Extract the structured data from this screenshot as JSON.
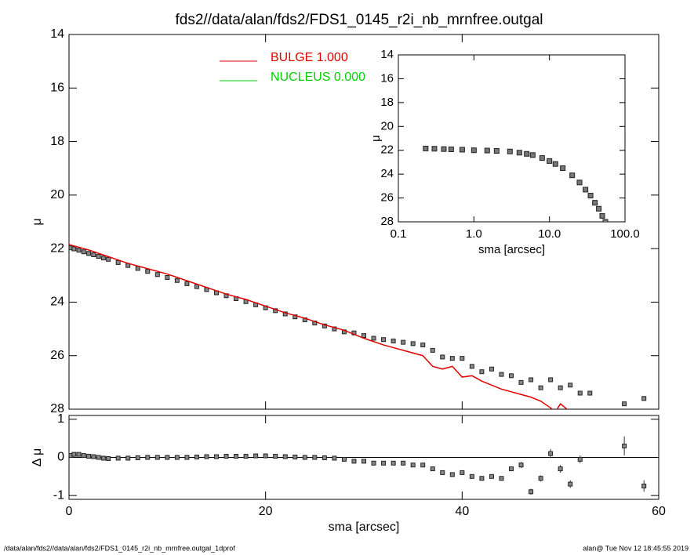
{
  "title": "fds2//data/alan/fds2/FDS1_0145_r2i_nb_mrnfree.outgal",
  "footer": {
    "left": "/data/alan/fds2//data/alan/fds2/FDS1_0145_r2i_nb_mrnfree.outgal_1dprof",
    "right": "alan@  Tue Nov 12 18:45:55 2019"
  },
  "chart_data": [
    {
      "type": "scatter",
      "ylabel": "μ",
      "xlim": [
        0,
        60
      ],
      "xticks": [
        0,
        20,
        40,
        60
      ],
      "show_xtick_labels": false,
      "ylim": [
        14,
        28
      ],
      "yaxis_inverted": true,
      "yticks": [
        14,
        16,
        18,
        20,
        22,
        24,
        26,
        28
      ],
      "legend": "upper center",
      "series": [
        {
          "style": "points",
          "color": "#888888",
          "x": [
            0.2,
            0.5,
            1,
            1.5,
            2,
            2.5,
            3,
            3.5,
            4,
            5,
            6,
            7,
            8,
            9,
            10,
            11,
            12,
            13,
            14,
            15,
            16,
            17,
            18,
            19,
            20,
            21,
            22,
            23,
            24,
            25,
            26,
            27,
            28,
            29,
            30,
            31,
            32,
            33,
            34,
            35,
            36,
            37,
            38,
            39,
            40,
            41,
            42,
            43,
            44,
            45,
            46,
            47,
            48,
            49,
            50,
            51,
            52,
            53,
            56.5,
            58.5
          ],
          "values": [
            21.97,
            22.01,
            22.06,
            22.12,
            22.18,
            22.23,
            22.29,
            22.35,
            22.4,
            22.52,
            22.63,
            22.74,
            22.85,
            22.97,
            23.08,
            23.19,
            23.31,
            23.42,
            23.53,
            23.65,
            23.76,
            23.87,
            23.98,
            24.1,
            24.21,
            24.32,
            24.44,
            24.55,
            24.66,
            24.78,
            24.89,
            25.0,
            25.11,
            25.15,
            25.25,
            25.35,
            25.4,
            25.45,
            25.5,
            25.55,
            25.6,
            25.8,
            26.05,
            26.1,
            26.1,
            26.4,
            26.6,
            26.5,
            26.7,
            26.75,
            27.0,
            26.9,
            27.2,
            26.9,
            27.2,
            27.1,
            27.4,
            27.4,
            27.8,
            27.6
          ]
        },
        {
          "style": "line",
          "name": "BULGE  1.000",
          "color": "#e00000",
          "x": [
            0,
            2,
            4,
            6,
            8,
            10,
            12,
            14,
            16,
            18,
            20,
            22,
            24,
            26,
            28,
            30,
            32,
            34,
            36,
            37,
            38,
            39,
            40,
            41,
            42,
            43,
            44,
            45,
            46,
            47,
            48,
            49,
            49.5,
            50,
            51
          ],
          "values": [
            21.85,
            22.05,
            22.3,
            22.55,
            22.75,
            22.95,
            23.2,
            23.45,
            23.7,
            23.9,
            24.15,
            24.4,
            24.6,
            24.85,
            25.05,
            25.35,
            25.6,
            25.8,
            26.0,
            26.4,
            26.5,
            26.4,
            26.8,
            26.75,
            26.95,
            27.1,
            27.25,
            27.35,
            27.45,
            27.55,
            27.7,
            27.95,
            28.1,
            27.8,
            28.1
          ]
        },
        {
          "style": "line",
          "name": "NUCLEUS  0.000",
          "color": "#00d000",
          "x": [],
          "values": []
        }
      ]
    },
    {
      "type": "scatter",
      "xlabel": "sma [arcsec]",
      "ylabel": "Δ μ",
      "xlim": [
        0,
        60
      ],
      "xticks": [
        0,
        20,
        40,
        60
      ],
      "ylim": [
        -1.1,
        1.1
      ],
      "yticks": [
        -1,
        0,
        1
      ],
      "zero_line": 0,
      "series": [
        {
          "style": "points",
          "color": "#888888",
          "x": [
            0.2,
            0.5,
            1,
            1.5,
            2,
            2.5,
            3,
            3.5,
            4,
            5,
            6,
            7,
            8,
            9,
            10,
            11,
            12,
            13,
            14,
            15,
            16,
            17,
            18,
            19,
            20,
            21,
            22,
            23,
            24,
            25,
            26,
            27,
            28,
            29,
            30,
            31,
            32,
            33,
            34,
            35,
            36,
            37,
            38,
            39,
            40,
            41,
            42,
            43,
            44,
            45,
            46,
            47,
            48,
            49,
            50,
            51,
            52,
            56.5,
            58.5
          ],
          "values": [
            0.05,
            0.08,
            0.08,
            0.05,
            0.03,
            0.02,
            0,
            -0.02,
            -0.03,
            -0.02,
            -0.02,
            -0.01,
            0,
            0,
            0,
            0,
            0,
            0.01,
            0.02,
            0.02,
            0.03,
            0.03,
            0.03,
            0.04,
            0.04,
            0.03,
            0.02,
            0.01,
            0,
            0,
            -0.01,
            -0.02,
            -0.05,
            -0.1,
            -0.1,
            -0.15,
            -0.15,
            -0.15,
            -0.15,
            -0.2,
            -0.2,
            -0.3,
            -0.4,
            -0.45,
            -0.4,
            -0.5,
            -0.55,
            -0.5,
            -0.55,
            -0.3,
            -0.2,
            -0.9,
            -0.55,
            0.1,
            -0.3,
            -0.7,
            -0.05,
            0.3,
            -0.75
          ],
          "errors": [
            null,
            null,
            null,
            null,
            null,
            null,
            null,
            null,
            null,
            null,
            null,
            null,
            null,
            null,
            null,
            null,
            null,
            null,
            null,
            null,
            null,
            null,
            null,
            null,
            null,
            null,
            null,
            null,
            null,
            null,
            null,
            null,
            null,
            null,
            null,
            null,
            null,
            null,
            null,
            null,
            null,
            null,
            null,
            null,
            null,
            null,
            null,
            null,
            null,
            0.05,
            0.08,
            0.08,
            0.08,
            0.12,
            0.1,
            0.1,
            0.1,
            0.25,
            0.15
          ]
        }
      ]
    },
    {
      "type": "scatter",
      "xlabel": "sma [arcsec]",
      "ylabel": "μ",
      "xlog": true,
      "xlim": [
        0.1,
        100
      ],
      "xticks": [
        {
          "value": 0.1,
          "label": "0.1"
        },
        {
          "value": 1,
          "label": "1.0"
        },
        {
          "value": 10,
          "label": "10.0"
        },
        {
          "value": 100,
          "label": "100.0"
        }
      ],
      "ylim": [
        14,
        28
      ],
      "yaxis_inverted": true,
      "yticks": [
        14,
        16,
        18,
        20,
        22,
        24,
        26,
        28
      ],
      "series": [
        {
          "style": "points",
          "color": "#777777",
          "x": [
            0.23,
            0.3,
            0.4,
            0.5,
            0.7,
            1,
            1.5,
            2,
            3,
            4,
            5,
            6,
            8,
            10,
            12,
            15,
            20,
            25,
            30,
            35,
            40,
            45,
            50,
            55
          ],
          "values": [
            21.85,
            21.87,
            21.9,
            21.92,
            21.95,
            22,
            22.02,
            22.05,
            22.1,
            22.2,
            22.3,
            22.4,
            22.65,
            22.9,
            23.15,
            23.5,
            24.1,
            24.7,
            25.3,
            25.8,
            26.4,
            26.9,
            27.5,
            28.0
          ]
        }
      ]
    }
  ]
}
